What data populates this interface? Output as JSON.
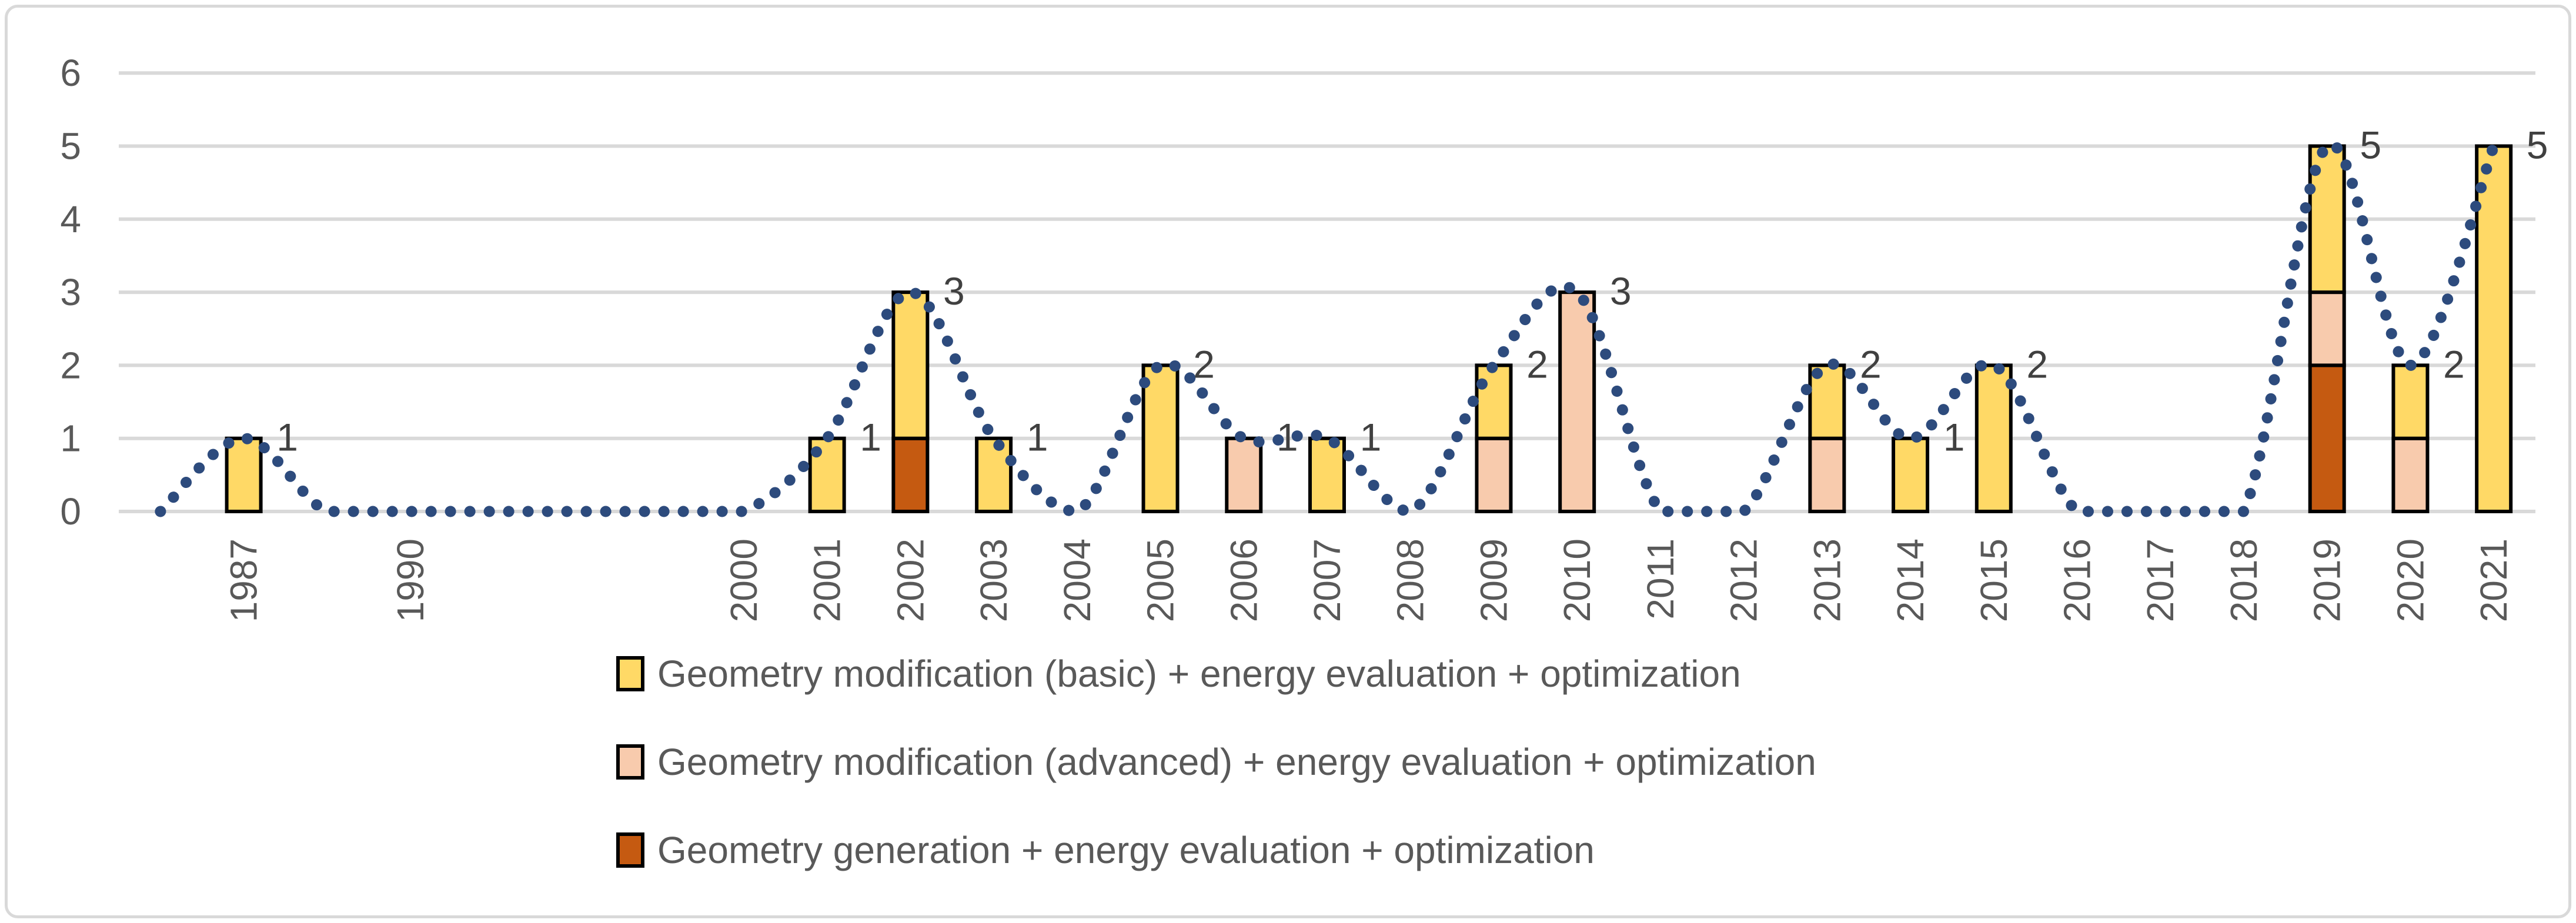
{
  "legend": {
    "items": [
      {
        "label": "Geometry modification (basic) + energy evaluation + optimization",
        "color": "#FFD966"
      },
      {
        "label": "Geometry modification (advanced) + energy evaluation  + optimization",
        "color": "#F8CBAD"
      },
      {
        "label": "Geometry generation + energy evaluation  + optimization",
        "color": "#C55A11"
      }
    ]
  },
  "chart_data": {
    "type": "bar",
    "stacked": true,
    "title": "",
    "xlabel": "",
    "ylabel": "",
    "ylim": [
      0,
      6
    ],
    "yticks": [
      "0",
      "1",
      "2",
      "3",
      "4",
      "5",
      "6"
    ],
    "grid": true,
    "legend_position": "bottom",
    "categories": [
      "",
      "1987",
      "",
      "1990",
      "",
      "",
      "",
      "2000",
      "2001",
      "2002",
      "2003",
      "2004",
      "2005",
      "2006",
      "2007",
      "2008",
      "2009",
      "2010",
      "2011",
      "2012",
      "2013",
      "2014",
      "2015",
      "2016",
      "2017",
      "2018",
      "2019",
      "2020",
      "2021"
    ],
    "series": [
      {
        "name": "Geometry modification (basic) + energy evaluation + optimization",
        "color": "#FFD966",
        "values": [
          0,
          1,
          0,
          0,
          0,
          0,
          0,
          0,
          1,
          2,
          1,
          0,
          2,
          0,
          1,
          0,
          1,
          0,
          0,
          0,
          1,
          1,
          2,
          0,
          0,
          0,
          2,
          1,
          5
        ]
      },
      {
        "name": "Geometry modification (advanced) + energy evaluation  + optimization",
        "color": "#F8CBAD",
        "values": [
          0,
          0,
          0,
          0,
          0,
          0,
          0,
          0,
          0,
          0,
          0,
          0,
          0,
          1,
          0,
          0,
          1,
          3,
          0,
          0,
          1,
          0,
          0,
          0,
          0,
          0,
          1,
          1,
          0
        ]
      },
      {
        "name": "Geometry generation + energy evaluation  + optimization",
        "color": "#C55A11",
        "values": [
          0,
          0,
          0,
          0,
          0,
          0,
          0,
          0,
          0,
          1,
          0,
          0,
          0,
          0,
          0,
          0,
          0,
          0,
          0,
          0,
          0,
          0,
          0,
          0,
          0,
          0,
          2,
          0,
          0
        ]
      }
    ],
    "totals": [
      0,
      1,
      0,
      0,
      0,
      0,
      0,
      0,
      1,
      3,
      1,
      0,
      2,
      1,
      1,
      0,
      2,
      3,
      0,
      0,
      2,
      1,
      2,
      0,
      0,
      0,
      5,
      2,
      5
    ],
    "data_labels": [
      "",
      "1",
      "",
      "",
      "",
      "",
      "",
      "",
      "1",
      "3",
      "1",
      "",
      "2",
      "1",
      "1",
      "",
      "2",
      "3",
      "",
      "",
      "2",
      "1",
      "2",
      "",
      "",
      "",
      "5",
      "2",
      "5"
    ],
    "trend_line": {
      "style": "dotted",
      "smooth": true,
      "color": "#2D4B7D",
      "values": [
        0,
        1,
        0,
        0,
        0,
        0,
        0,
        0,
        1,
        3,
        1,
        0,
        2,
        1,
        1,
        0,
        2,
        3,
        0,
        0,
        2,
        1,
        2,
        0,
        0,
        0,
        5,
        2,
        5
      ]
    },
    "colors": {
      "gridline": "#D9D9D9",
      "bar_outline": "#000000",
      "tick_label": "#595959",
      "data_label": "#404040"
    }
  }
}
